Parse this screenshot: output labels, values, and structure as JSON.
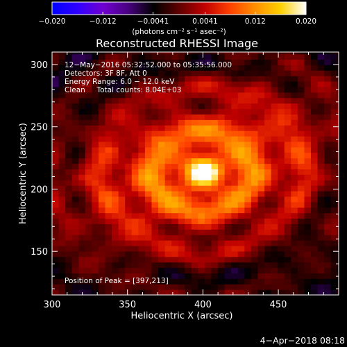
{
  "chart_data": {
    "type": "heatmap",
    "title": "Reconstructed RHESSI Image",
    "xlabel": "Heliocentric X (arcsec)",
    "ylabel": "Heliocentric Y (arcsec)",
    "xlim": [
      300,
      490
    ],
    "ylim": [
      115,
      310
    ],
    "x_ticks": [
      300,
      350,
      400,
      450
    ],
    "y_ticks": [
      150,
      200,
      250,
      300
    ],
    "colorbar": {
      "min": -0.02,
      "max": 0.02,
      "tick_labels": [
        "−0.020",
        "−0.012",
        "−0.0041",
        "0.0041",
        "0.012",
        "0.020"
      ],
      "tick_values": [
        -0.02,
        -0.012,
        -0.0041,
        0.0041,
        0.012,
        0.02
      ],
      "unit_label": "(photons cm⁻² s⁻¹ asec⁻²)",
      "colormap": [
        "#0000ff",
        "#3000ff",
        "#7000d0",
        "#4a0080",
        "#000000",
        "#600000",
        "#c00000",
        "#ff4000",
        "#ff9000",
        "#ffd000",
        "#ffffff"
      ]
    },
    "annotations": {
      "time_range": "12−May−2016 05:32:52.000 to 05:35:56.000",
      "detectors": "Detectors: 3F 8F, Att 0",
      "energy_range": "Energy Range: 6.0 − 12.0 keV",
      "clean_counts": "Clean     Total counts: 8.04E+03",
      "peak": "Position of Peak = [397,213]"
    },
    "peak_position": [
      397,
      213
    ],
    "peak_value": 0.02
  },
  "footer": {
    "date": "4−Apr−2018 08:18"
  }
}
